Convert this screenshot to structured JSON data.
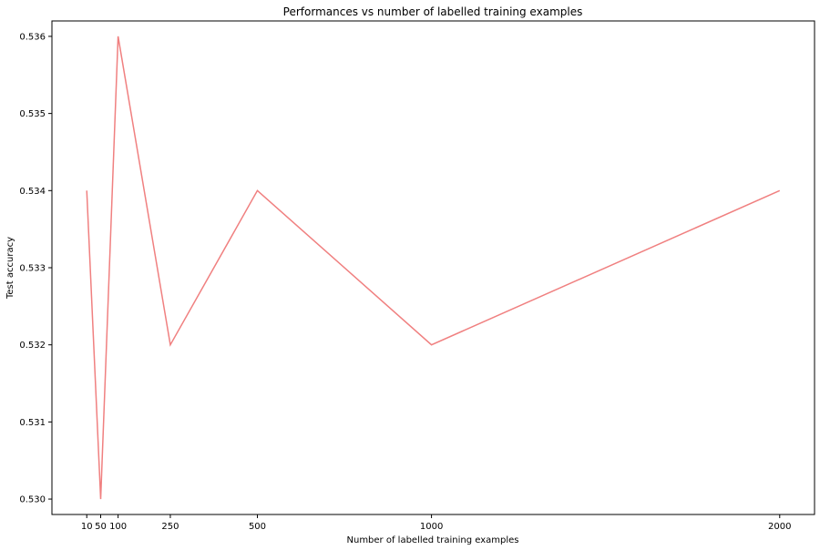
{
  "chart_data": {
    "type": "line",
    "title": "Performances vs number of labelled training examples",
    "xlabel": "Number of labelled training examples",
    "ylabel": "Test accuracy",
    "x": [
      10,
      50,
      100,
      250,
      500,
      1000,
      2000
    ],
    "xticks": [
      10,
      50,
      100,
      250,
      500,
      1000,
      2000
    ],
    "xtick_labels": [
      "10",
      "50",
      "100",
      "250",
      "500",
      "1000",
      "2000"
    ],
    "yticks": [
      0.53,
      0.531,
      0.532,
      0.533,
      0.534,
      0.535,
      0.536
    ],
    "ytick_labels": [
      "0.530",
      "0.531",
      "0.532",
      "0.533",
      "0.534",
      "0.535",
      "0.536"
    ],
    "xlim": [
      -90,
      2100
    ],
    "ylim": [
      0.5298,
      0.5362
    ],
    "grid": false,
    "legend": "none",
    "series": [
      {
        "color": "#f08080",
        "values": [
          0.534,
          0.53,
          0.536,
          0.532,
          0.534,
          0.532,
          0.534
        ]
      }
    ]
  }
}
